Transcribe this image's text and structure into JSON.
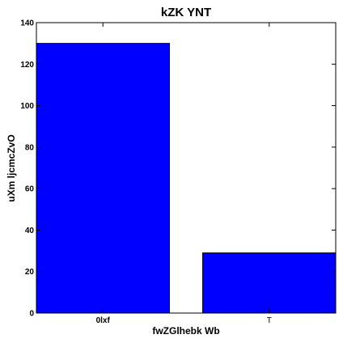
{
  "chart_data": {
    "type": "bar",
    "title": "kZK YNT",
    "xlabel": "fwZGlhebk Wb",
    "ylabel": "uXm ljcmcZvO",
    "categories": [
      "0lxf",
      "T"
    ],
    "values": [
      130,
      29
    ],
    "ylim": [
      0,
      140
    ],
    "yticks": [
      0,
      20,
      40,
      60,
      80,
      100,
      120,
      140
    ],
    "bar_color": "#0000ff",
    "grid": false,
    "legend": "none"
  }
}
